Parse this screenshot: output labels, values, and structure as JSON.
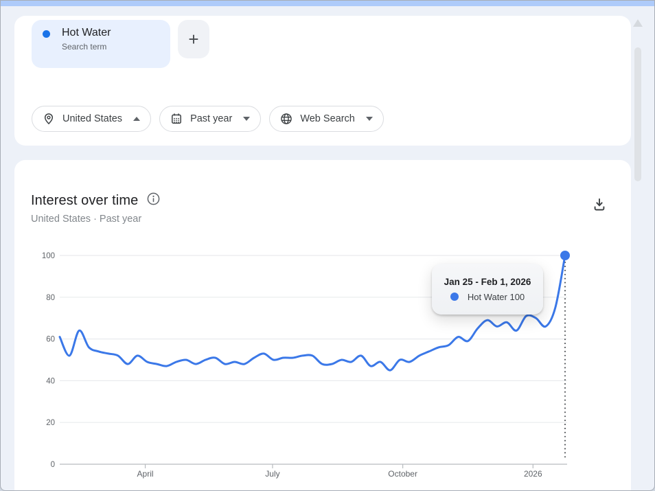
{
  "page": {
    "background": "#edf1f8",
    "top_bar_color": "#aecbfa"
  },
  "term_card": {
    "term": "Hot Water",
    "term_type": "Search term",
    "dot_color": "#1a73e8",
    "add_button_label": "+"
  },
  "filters": {
    "location": {
      "label": "United States",
      "icon": "location-pin",
      "caret": "up"
    },
    "time": {
      "label": "Past year",
      "icon": "calendar",
      "caret": "down"
    },
    "search_type": {
      "label": "Web Search",
      "icon": "globe",
      "caret": "down"
    }
  },
  "chart_card": {
    "title": "Interest over time",
    "subtitle": "United States · Past year"
  },
  "tooltip": {
    "date_range": "Jan 25 - Feb 1, 2026",
    "series_label": "Hot Water 100",
    "dot_color": "#3b78e8"
  },
  "chart_data": {
    "type": "line",
    "title": "Interest over time",
    "geo": "United States",
    "time_range": "Past year",
    "ylim": [
      0,
      100
    ],
    "y_ticks": [
      0,
      20,
      40,
      60,
      80,
      100
    ],
    "x_ticks": [
      {
        "label": "April",
        "index": 8.8
      },
      {
        "label": "July",
        "index": 21.9
      },
      {
        "label": "October",
        "index": 35.3
      },
      {
        "label": "2026",
        "index": 48.7
      }
    ],
    "grid": true,
    "legend_position": "none",
    "line_color": "#3b78e8",
    "series": [
      {
        "name": "Hot Water",
        "values": [
          61,
          52,
          64,
          56,
          54,
          53,
          52,
          48,
          52,
          49,
          48,
          47,
          49,
          50,
          48,
          50,
          51,
          48,
          49,
          48,
          51,
          53,
          50,
          51,
          51,
          52,
          52,
          48,
          48,
          50,
          49,
          52,
          47,
          49,
          45,
          50,
          49,
          52,
          54,
          56,
          57,
          61,
          59,
          65,
          69,
          66,
          68,
          64,
          71,
          70,
          66,
          75,
          100
        ]
      }
    ],
    "highlight": {
      "point_index": 52,
      "value": 100,
      "date_range": "Jan 25 - Feb 1, 2026"
    }
  }
}
